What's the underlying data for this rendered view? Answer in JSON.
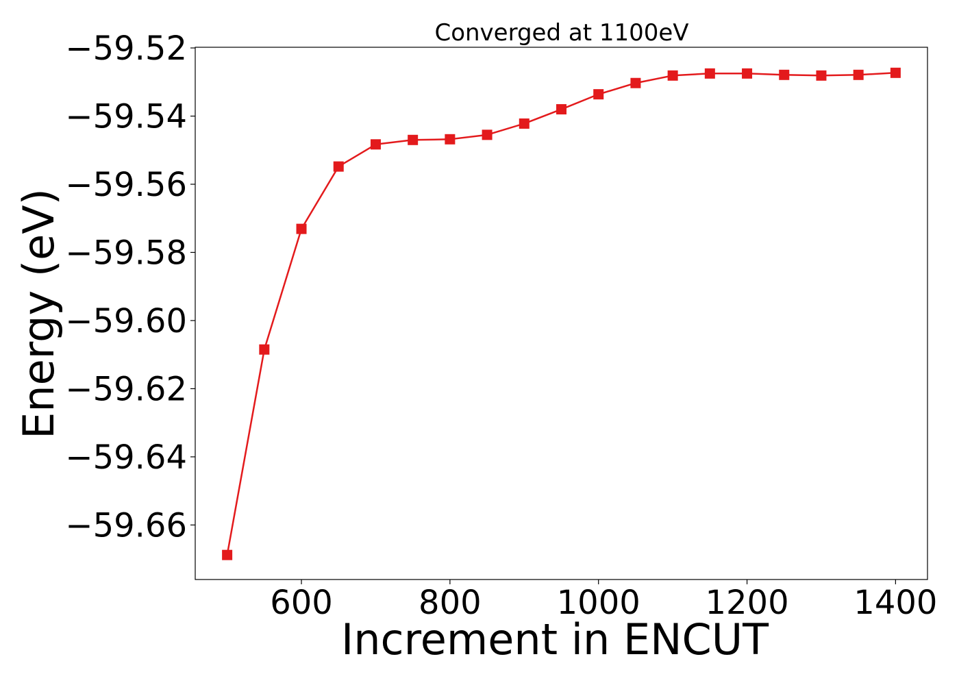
{
  "chart_data": {
    "type": "line",
    "title": "Converged at 1100eV",
    "xlabel": "Increment in ENCUT",
    "ylabel": "Energy (eV)",
    "xlim": [
      457,
      1443
    ],
    "ylim": [
      -59.676,
      -59.5198
    ],
    "xticks": [
      600,
      800,
      1000,
      1200,
      1400
    ],
    "yticks": [
      -59.52,
      -59.54,
      -59.56,
      -59.58,
      -59.6,
      -59.62,
      -59.64,
      -59.66
    ],
    "ytick_labels": [
      "−59.52",
      "−59.54",
      "−59.56",
      "−59.58",
      "−59.60",
      "−59.62",
      "−59.64",
      "−59.66"
    ],
    "grid": false,
    "series": [
      {
        "color": "#e31a1c",
        "marker": "square",
        "x": [
          500,
          550,
          600,
          650,
          700,
          750,
          800,
          850,
          900,
          950,
          1000,
          1050,
          1100,
          1150,
          1200,
          1250,
          1300,
          1350,
          1400
        ],
        "y": [
          -59.6688,
          -59.6085,
          -59.5731,
          -59.5548,
          -59.5483,
          -59.547,
          -59.5468,
          -59.5455,
          -59.5422,
          -59.538,
          -59.5336,
          -59.5303,
          -59.5281,
          -59.5275,
          -59.5275,
          -59.5279,
          -59.5281,
          -59.5279,
          -59.5273
        ]
      }
    ]
  }
}
